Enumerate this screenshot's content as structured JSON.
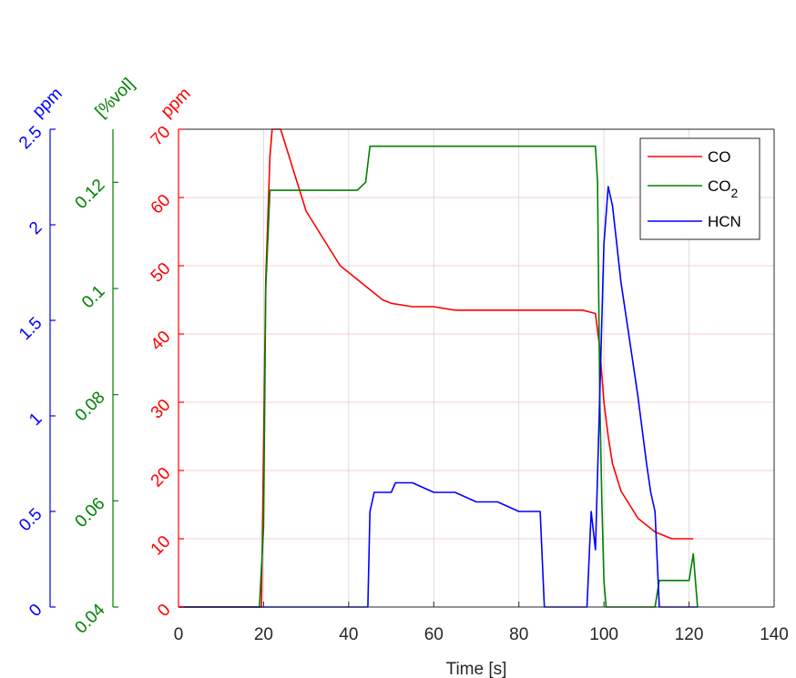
{
  "chart_data": {
    "type": "line",
    "xlabel": "Time [s]",
    "xlim": [
      0,
      140
    ],
    "xticks": [
      0,
      20,
      40,
      60,
      80,
      100,
      120,
      140
    ],
    "grid": true,
    "legend_position": "top-right",
    "axes": [
      {
        "id": "hcn_axis",
        "label": "ppm",
        "color": "#0000ff",
        "ylim": [
          0,
          2.5
        ],
        "ticks": [
          0,
          0.5,
          1,
          1.5,
          2,
          2.5
        ],
        "tick_labels": [
          "0",
          "0.5",
          "1",
          "1.5",
          "2",
          "2.5"
        ]
      },
      {
        "id": "co2_axis",
        "label": "[%vol]",
        "color": "#008000",
        "ylim": [
          0.04,
          0.13
        ],
        "ticks": [
          0.04,
          0.06,
          0.08,
          0.1,
          0.12
        ],
        "tick_labels": [
          "0.04",
          "0.06",
          "0.08",
          "0.1",
          "0.12"
        ]
      },
      {
        "id": "co_axis",
        "label": "ppm",
        "color": "#ff0000",
        "ylim": [
          0,
          70
        ],
        "ticks": [
          0,
          10,
          20,
          30,
          40,
          50,
          60,
          70
        ],
        "tick_labels": [
          "0",
          "10",
          "20",
          "30",
          "40",
          "50",
          "60",
          "70"
        ]
      }
    ],
    "series": [
      {
        "name": "CO",
        "color": "#ff0000",
        "axis": "co_axis",
        "x": [
          0,
          19.5,
          20.5,
          21.5,
          22,
          24,
          25,
          26,
          27,
          28,
          29,
          30,
          32,
          34,
          36,
          38,
          40,
          42,
          44,
          46,
          48,
          50,
          55,
          60,
          65,
          70,
          75,
          80,
          85,
          90,
          95,
          98,
          99,
          100,
          101,
          102,
          103,
          104,
          106,
          108,
          110,
          112,
          114,
          116,
          118,
          120,
          121
        ],
        "y": [
          0,
          0,
          48,
          66,
          70,
          70,
          68,
          66,
          64,
          62,
          60,
          58,
          56,
          54,
          52,
          50,
          49,
          48,
          47,
          46,
          45,
          44.5,
          44,
          44,
          43.5,
          43.5,
          43.5,
          43.5,
          43.5,
          43.5,
          43.5,
          43,
          38,
          30,
          25,
          21,
          19,
          17,
          15,
          13,
          12,
          11,
          10.5,
          10,
          10,
          10,
          10
        ]
      },
      {
        "name": "CO2",
        "color": "#008000",
        "axis": "co2_axis",
        "x": [
          0,
          19,
          20,
          20.5,
          21.5,
          25,
          30,
          35,
          40,
          42,
          44,
          45,
          50,
          60,
          70,
          80,
          90,
          98,
          98.5,
          99,
          99.5,
          100,
          100.5,
          101,
          105,
          110,
          112,
          113,
          114,
          116,
          118,
          119,
          120,
          121,
          122
        ],
        "y": [
          0.04,
          0.04,
          0.055,
          0.1,
          0.1185,
          0.1185,
          0.1185,
          0.1185,
          0.1185,
          0.1185,
          0.12,
          0.1268,
          0.1268,
          0.1268,
          0.1268,
          0.1268,
          0.1268,
          0.1268,
          0.12,
          0.08,
          0.06,
          0.045,
          0.04,
          0.04,
          0.04,
          0.04,
          0.04,
          0.045,
          0.045,
          0.045,
          0.045,
          0.045,
          0.045,
          0.05,
          0.04
        ]
      },
      {
        "name": "HCN",
        "color": "#0000ff",
        "axis": "hcn_axis",
        "x": [
          0,
          44.5,
          45,
          46,
          47,
          48,
          50,
          51,
          55,
          60,
          65,
          70,
          75,
          80,
          85,
          86,
          96,
          97,
          98,
          99,
          100,
          101,
          102,
          103,
          104,
          106,
          108,
          110,
          111,
          112,
          113,
          122
        ],
        "y": [
          0,
          0,
          0.5,
          0.6,
          0.6,
          0.6,
          0.6,
          0.65,
          0.65,
          0.6,
          0.6,
          0.55,
          0.55,
          0.5,
          0.5,
          0,
          0,
          0.5,
          0.3,
          1.1,
          1.9,
          2.2,
          2.1,
          1.9,
          1.7,
          1.4,
          1.1,
          0.75,
          0.6,
          0.5,
          0,
          0
        ]
      }
    ],
    "legend": [
      {
        "label": "CO",
        "sub": ""
      },
      {
        "label": "CO",
        "sub": "2"
      },
      {
        "label": "HCN",
        "sub": ""
      }
    ]
  }
}
